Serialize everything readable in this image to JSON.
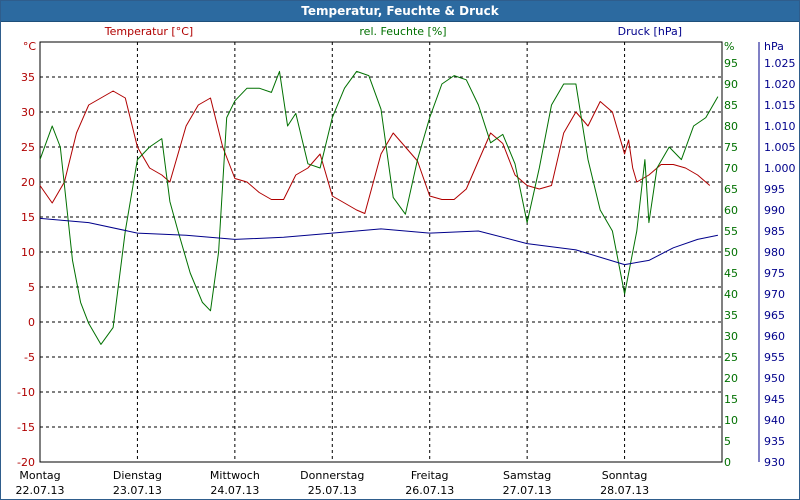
{
  "window": {
    "title": "Temperatur, Feuchte & Druck"
  },
  "chart_data": {
    "type": "line",
    "title": "Temperatur, Feuchte & Druck",
    "colors": {
      "temperature": "#b00000",
      "humidity": "#007000",
      "pressure": "#00008b",
      "grid": "#000000",
      "title_bar": "#2c6aa0"
    },
    "grid": true,
    "x_start": "22.07.13 00:00",
    "x_end": "29.07.13 00:00",
    "x_ticks": [
      {
        "day": "Montag",
        "date": "22.07.13"
      },
      {
        "day": "Dienstag",
        "date": "23.07.13"
      },
      {
        "day": "Mittwoch",
        "date": "24.07.13"
      },
      {
        "day": "Donnerstag",
        "date": "25.07.13"
      },
      {
        "day": "Freitag",
        "date": "26.07.13"
      },
      {
        "day": "Samstag",
        "date": "27.07.13"
      },
      {
        "day": "Sonntag",
        "date": "28.07.13"
      }
    ],
    "axes": {
      "temperature": {
        "label": "Temperatur [°C]",
        "unit": "°C",
        "range": [
          -20,
          40
        ],
        "ticks": [
          "-20",
          "-15",
          "-10",
          "-5",
          "0",
          "5",
          "10",
          "15",
          "20",
          "25",
          "30",
          "35"
        ]
      },
      "humidity": {
        "label": "rel. Feuchte [%]",
        "unit": "%",
        "range": [
          0,
          100
        ],
        "ticks": [
          "0",
          "5",
          "10",
          "15",
          "20",
          "25",
          "30",
          "35",
          "40",
          "45",
          "50",
          "55",
          "60",
          "65",
          "70",
          "75",
          "80",
          "85",
          "90",
          "95"
        ]
      },
      "pressure": {
        "label": "Druck [hPa]",
        "unit": "hPa",
        "range": [
          930,
          1030
        ],
        "ticks": [
          "930",
          "935",
          "940",
          "945",
          "950",
          "955",
          "960",
          "965",
          "970",
          "975",
          "980",
          "985",
          "990",
          "995",
          "1.000",
          "1.005",
          "1.010",
          "1.015",
          "1.020",
          "1.025"
        ]
      }
    },
    "series": [
      {
        "name": "Temperatur [°C]",
        "axis": "temperature",
        "points": [
          [
            "22.07.13 00:00",
            19.5
          ],
          [
            "22.07.13 03:00",
            17
          ],
          [
            "22.07.13 06:00",
            20
          ],
          [
            "22.07.13 09:00",
            27
          ],
          [
            "22.07.13 12:00",
            31
          ],
          [
            "22.07.13 15:00",
            32
          ],
          [
            "22.07.13 18:00",
            33
          ],
          [
            "22.07.13 21:00",
            32
          ],
          [
            "23.07.13 00:00",
            25
          ],
          [
            "23.07.13 03:00",
            22
          ],
          [
            "23.07.13 06:00",
            21
          ],
          [
            "23.07.13 08:00",
            20
          ],
          [
            "23.07.13 12:00",
            28
          ],
          [
            "23.07.13 15:00",
            31
          ],
          [
            "23.07.13 18:00",
            32
          ],
          [
            "23.07.13 21:00",
            25
          ],
          [
            "24.07.13 00:00",
            20.5
          ],
          [
            "24.07.13 03:00",
            20
          ],
          [
            "24.07.13 06:00",
            18.5
          ],
          [
            "24.07.13 09:00",
            17.5
          ],
          [
            "24.07.13 12:00",
            17.5
          ],
          [
            "24.07.13 15:00",
            21
          ],
          [
            "24.07.13 18:00",
            22
          ],
          [
            "24.07.13 21:00",
            24
          ],
          [
            "25.07.13 00:00",
            18
          ],
          [
            "25.07.13 03:00",
            17
          ],
          [
            "25.07.13 06:00",
            16
          ],
          [
            "25.07.13 08:00",
            15.5
          ],
          [
            "25.07.13 12:00",
            24
          ],
          [
            "25.07.13 15:00",
            27
          ],
          [
            "25.07.13 18:00",
            25
          ],
          [
            "25.07.13 21:00",
            23
          ],
          [
            "26.07.13 00:00",
            18
          ],
          [
            "26.07.13 03:00",
            17.5
          ],
          [
            "26.07.13 06:00",
            17.5
          ],
          [
            "26.07.13 09:00",
            19
          ],
          [
            "26.07.13 12:00",
            23
          ],
          [
            "26.07.13 15:00",
            27
          ],
          [
            "26.07.13 18:00",
            25.5
          ],
          [
            "26.07.13 21:00",
            21
          ],
          [
            "27.07.13 00:00",
            19.5
          ],
          [
            "27.07.13 03:00",
            19
          ],
          [
            "27.07.13 06:00",
            19.5
          ],
          [
            "27.07.13 09:00",
            27
          ],
          [
            "27.07.13 12:00",
            30
          ],
          [
            "27.07.13 15:00",
            28
          ],
          [
            "27.07.13 18:00",
            31.5
          ],
          [
            "27.07.13 21:00",
            30
          ],
          [
            "28.07.13 00:00",
            24
          ],
          [
            "28.07.13 01:00",
            26
          ],
          [
            "28.07.13 02:00",
            22
          ],
          [
            "28.07.13 03:00",
            20
          ],
          [
            "28.07.13 06:00",
            21
          ],
          [
            "28.07.13 09:00",
            22.5
          ],
          [
            "28.07.13 12:00",
            22.5
          ],
          [
            "28.07.13 15:00",
            22
          ],
          [
            "28.07.13 18:00",
            21
          ],
          [
            "28.07.13 21:00",
            19.5
          ]
        ]
      },
      {
        "name": "rel. Feuchte [%]",
        "axis": "humidity",
        "points": [
          [
            "22.07.13 00:00",
            72
          ],
          [
            "22.07.13 03:00",
            80
          ],
          [
            "22.07.13 05:00",
            75
          ],
          [
            "22.07.13 08:00",
            48
          ],
          [
            "22.07.13 10:00",
            38
          ],
          [
            "22.07.13 12:00",
            33
          ],
          [
            "22.07.13 15:00",
            28
          ],
          [
            "22.07.13 18:00",
            32
          ],
          [
            "22.07.13 21:00",
            55
          ],
          [
            "23.07.13 00:00",
            72
          ],
          [
            "23.07.13 03:00",
            75
          ],
          [
            "23.07.13 06:00",
            77
          ],
          [
            "23.07.13 08:00",
            62
          ],
          [
            "23.07.13 10:00",
            55
          ],
          [
            "23.07.13 13:00",
            45
          ],
          [
            "23.07.13 16:00",
            38
          ],
          [
            "23.07.13 18:00",
            36
          ],
          [
            "23.07.13 20:00",
            50
          ],
          [
            "23.07.13 22:00",
            82
          ],
          [
            "24.07.13 00:00",
            86
          ],
          [
            "24.07.13 03:00",
            89
          ],
          [
            "24.07.13 06:00",
            89
          ],
          [
            "24.07.13 09:00",
            88
          ],
          [
            "24.07.13 11:00",
            93
          ],
          [
            "24.07.13 13:00",
            80
          ],
          [
            "24.07.13 15:00",
            83
          ],
          [
            "24.07.13 18:00",
            71
          ],
          [
            "24.07.13 21:00",
            70
          ],
          [
            "25.07.13 00:00",
            82
          ],
          [
            "25.07.13 03:00",
            89
          ],
          [
            "25.07.13 06:00",
            93
          ],
          [
            "25.07.13 09:00",
            92
          ],
          [
            "25.07.13 12:00",
            84
          ],
          [
            "25.07.13 15:00",
            63
          ],
          [
            "25.07.13 18:00",
            59
          ],
          [
            "25.07.13 21:00",
            72
          ],
          [
            "26.07.13 00:00",
            82
          ],
          [
            "26.07.13 03:00",
            90
          ],
          [
            "26.07.13 06:00",
            92
          ],
          [
            "26.07.13 09:00",
            91
          ],
          [
            "26.07.13 12:00",
            85
          ],
          [
            "26.07.13 15:00",
            76
          ],
          [
            "26.07.13 18:00",
            78
          ],
          [
            "26.07.13 21:00",
            71
          ],
          [
            "27.07.13 00:00",
            57
          ],
          [
            "27.07.13 03:00",
            70
          ],
          [
            "27.07.13 06:00",
            85
          ],
          [
            "27.07.13 09:00",
            90
          ],
          [
            "27.07.13 12:00",
            90
          ],
          [
            "27.07.13 15:00",
            72
          ],
          [
            "27.07.13 18:00",
            60
          ],
          [
            "27.07.13 21:00",
            55
          ],
          [
            "28.07.13 00:00",
            40
          ],
          [
            "28.07.13 03:00",
            55
          ],
          [
            "28.07.13 05:00",
            72
          ],
          [
            "28.07.13 06:00",
            57
          ],
          [
            "28.07.13 08:00",
            70
          ],
          [
            "28.07.13 11:00",
            75
          ],
          [
            "28.07.13 14:00",
            72
          ],
          [
            "28.07.13 17:00",
            80
          ],
          [
            "28.07.13 20:00",
            82
          ],
          [
            "28.07.13 23:00",
            87
          ]
        ]
      },
      {
        "name": "Druck [hPa]",
        "axis": "pressure",
        "points": [
          [
            "22.07.13 00:00",
            988
          ],
          [
            "22.07.13 12:00",
            987
          ],
          [
            "23.07.13 00:00",
            984.5
          ],
          [
            "23.07.13 12:00",
            984
          ],
          [
            "24.07.13 00:00",
            983
          ],
          [
            "24.07.13 12:00",
            983.5
          ],
          [
            "25.07.13 00:00",
            984.5
          ],
          [
            "25.07.13 12:00",
            985.5
          ],
          [
            "26.07.13 00:00",
            984.5
          ],
          [
            "26.07.13 12:00",
            985
          ],
          [
            "27.07.13 00:00",
            982
          ],
          [
            "27.07.13 12:00",
            980.5
          ],
          [
            "28.07.13 00:00",
            977
          ],
          [
            "28.07.13 06:00",
            978
          ],
          [
            "28.07.13 12:00",
            981
          ],
          [
            "28.07.13 18:00",
            983
          ],
          [
            "28.07.13 23:00",
            984
          ]
        ]
      }
    ]
  }
}
